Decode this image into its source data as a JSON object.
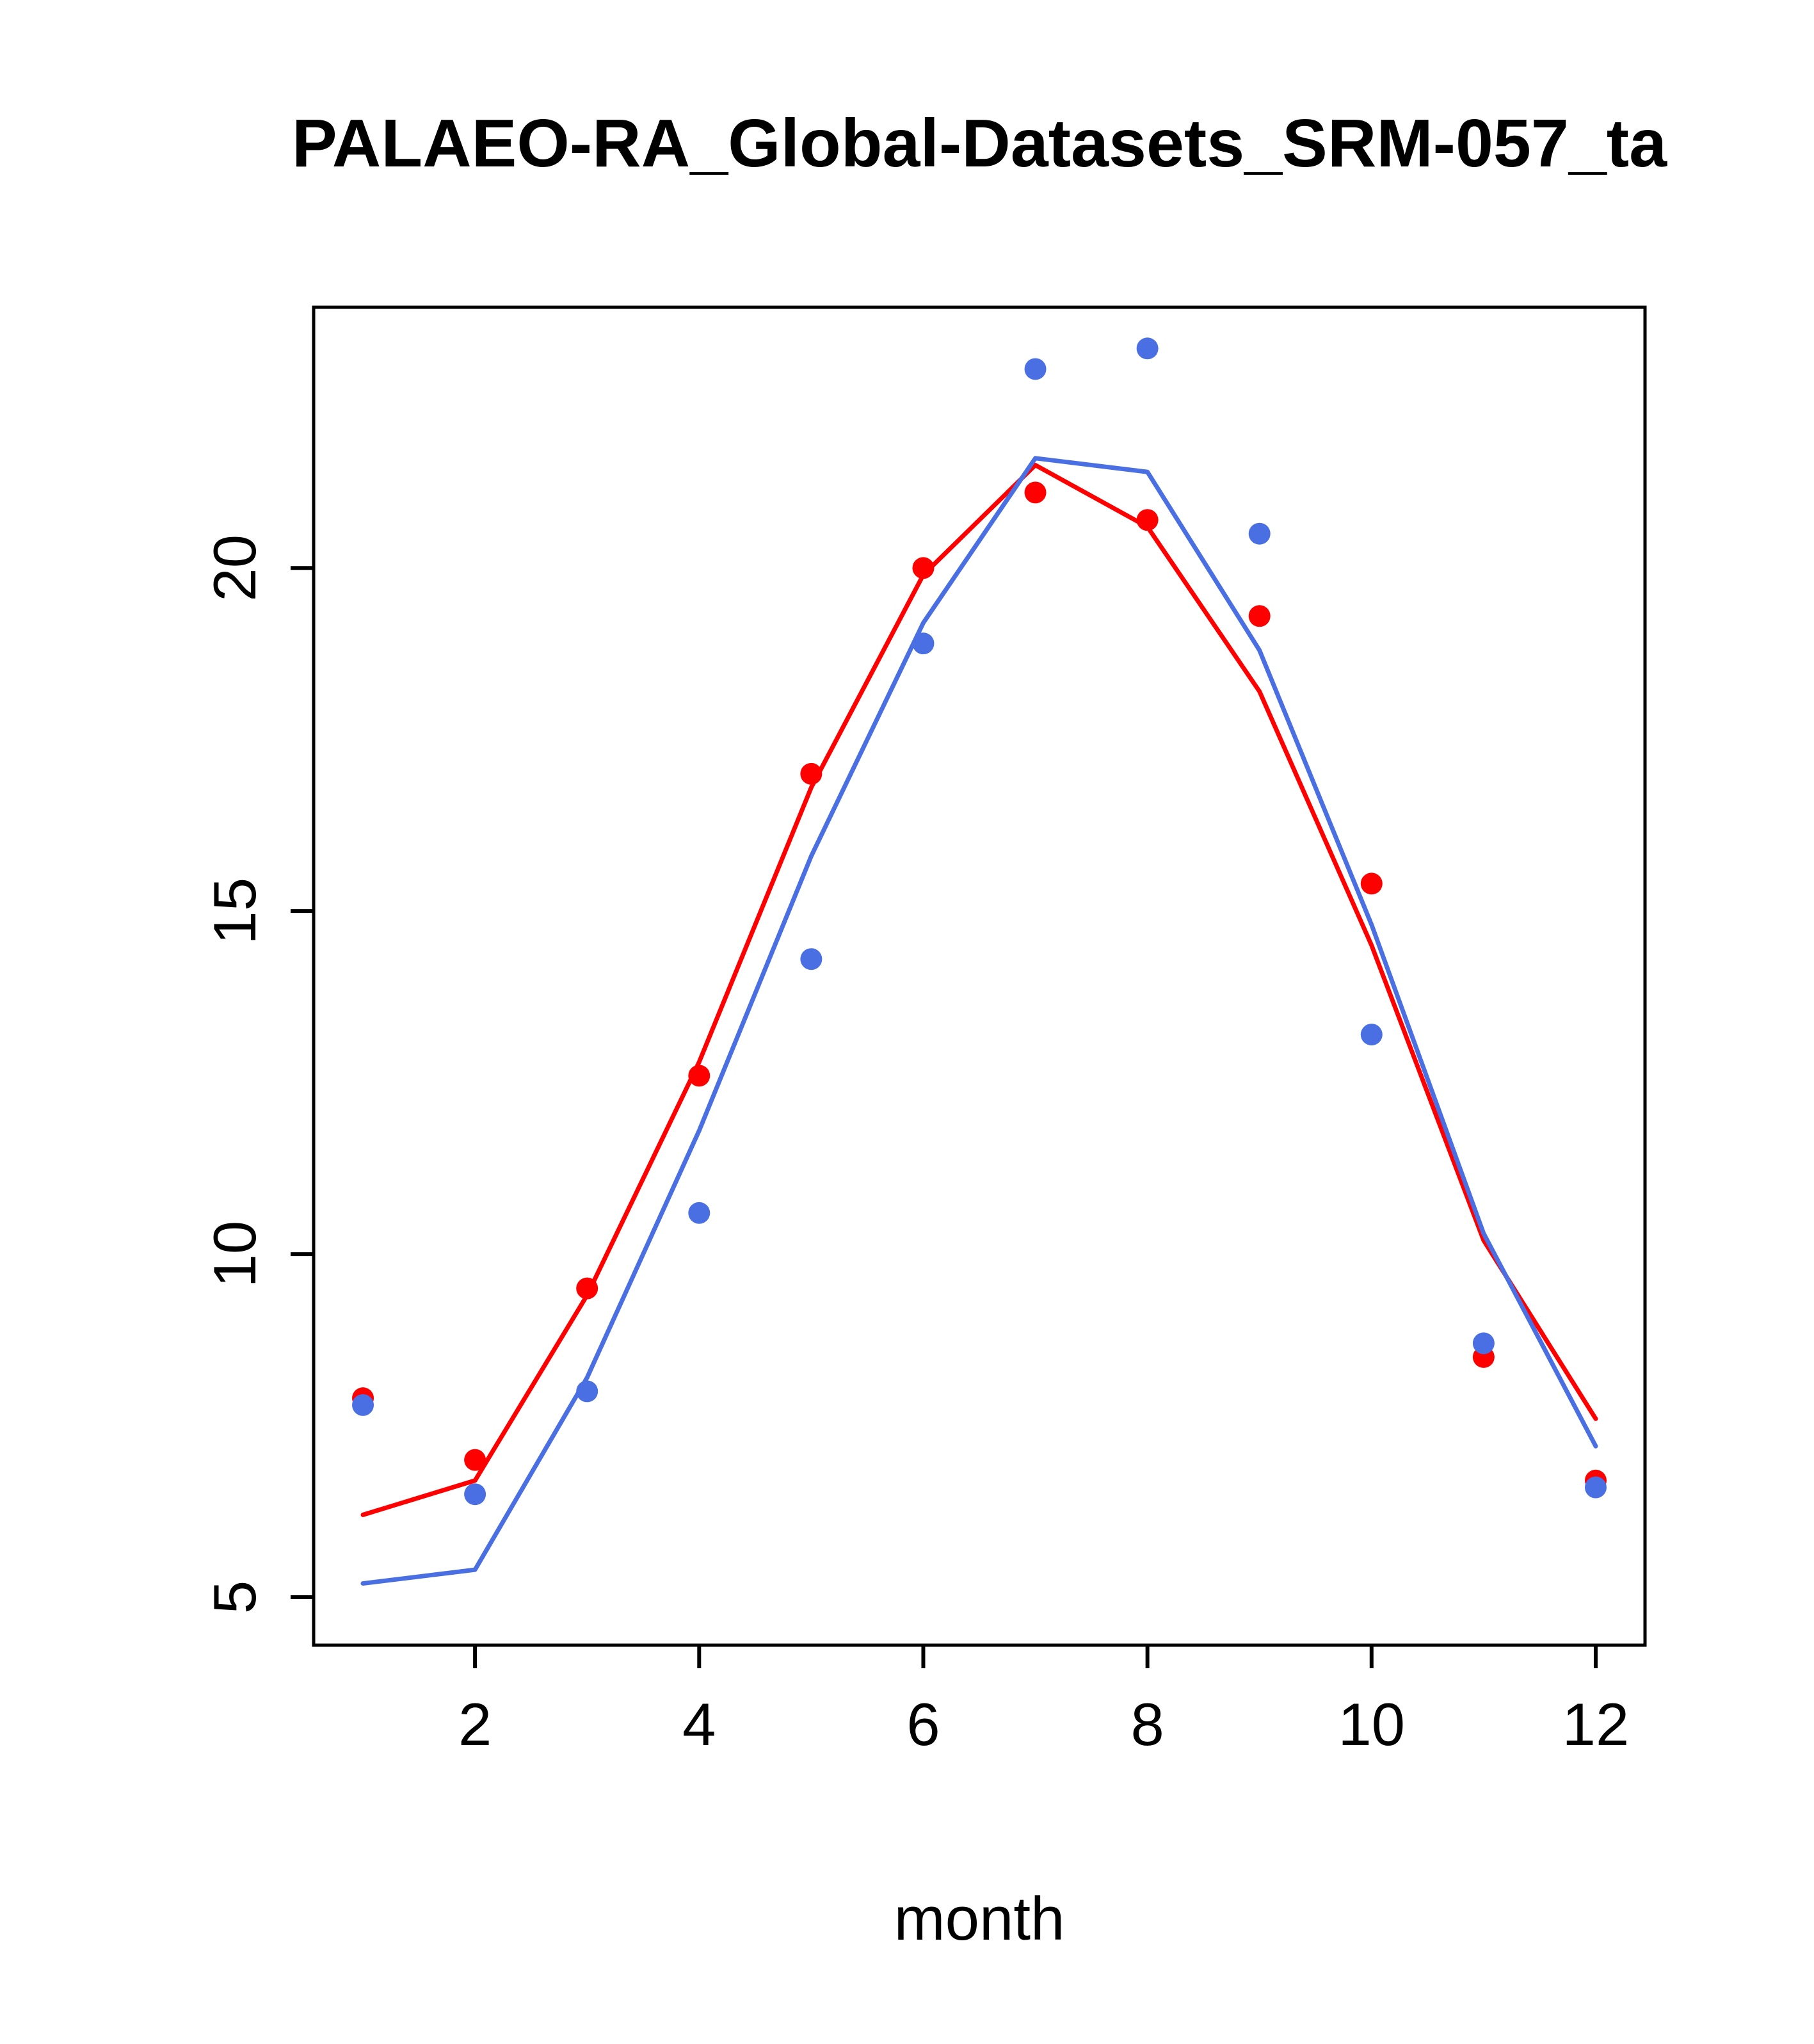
{
  "chart_data": {
    "type": "line",
    "title": "PALAEO-RA_Global-Datasets_SRM-057_ta",
    "xlabel": "month",
    "ylabel": "",
    "x": [
      1,
      2,
      3,
      4,
      5,
      6,
      7,
      8,
      9,
      10,
      11,
      12
    ],
    "xlim": [
      0.56,
      12.44
    ],
    "ylim": [
      4.3,
      23.8
    ],
    "xticks": [
      2,
      4,
      6,
      8,
      10,
      12
    ],
    "yticks": [
      5,
      10,
      15,
      20
    ],
    "grid": false,
    "legend": "none",
    "colors": {
      "red": "#ff0000",
      "blue": "#4a6fe3",
      "axis": "#000000",
      "background": "#ffffff"
    },
    "series": [
      {
        "name": "red-points",
        "style": "points",
        "color": "#ff0000",
        "values": [
          7.9,
          7.0,
          9.5,
          12.6,
          17.0,
          20.0,
          21.1,
          20.7,
          19.3,
          15.4,
          8.5,
          6.7
        ]
      },
      {
        "name": "blue-points",
        "style": "points",
        "color": "#4a6fe3",
        "values": [
          7.8,
          6.5,
          8.0,
          10.6,
          14.3,
          18.9,
          22.9,
          23.2,
          20.5,
          13.2,
          8.7,
          6.6
        ]
      },
      {
        "name": "red-line",
        "style": "line",
        "color": "#ff0000",
        "values": [
          6.2,
          6.7,
          9.4,
          12.8,
          16.8,
          19.9,
          21.5,
          20.6,
          18.2,
          14.5,
          10.2,
          7.6
        ]
      },
      {
        "name": "blue-line",
        "style": "line",
        "color": "#4a6fe3",
        "values": [
          5.2,
          5.4,
          8.2,
          11.8,
          15.8,
          19.2,
          21.6,
          21.4,
          18.8,
          14.8,
          10.3,
          7.2
        ]
      }
    ]
  }
}
